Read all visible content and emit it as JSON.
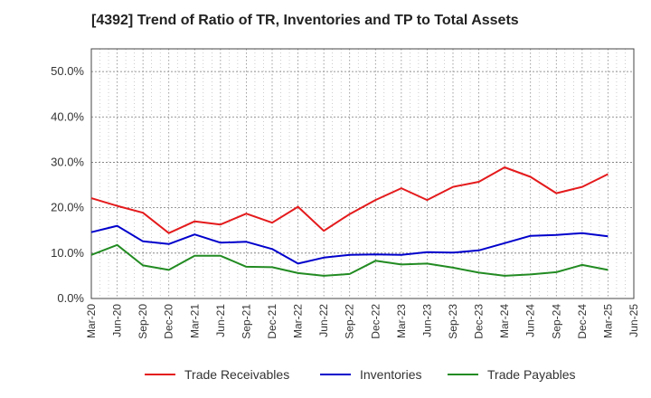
{
  "chart_data": {
    "type": "line",
    "title": "[4392]  Trend of Ratio of TR, Inventories and TP to Total Assets",
    "xlabel": "",
    "ylabel": "",
    "x": [
      "Mar-20",
      "Jun-20",
      "Sep-20",
      "Dec-20",
      "Mar-21",
      "Jun-21",
      "Sep-21",
      "Dec-21",
      "Mar-22",
      "Jun-22",
      "Sep-22",
      "Dec-22",
      "Mar-23",
      "Jun-23",
      "Sep-23",
      "Dec-23",
      "Mar-24",
      "Jun-24",
      "Sep-24",
      "Dec-24",
      "Mar-25",
      "Jun-25"
    ],
    "ylim": [
      0,
      55
    ],
    "yticks": [
      0,
      10,
      20,
      30,
      40,
      50
    ],
    "ytick_labels": [
      "0.0%",
      "10.0%",
      "20.0%",
      "30.0%",
      "40.0%",
      "50.0%"
    ],
    "grid": true,
    "legend_position": "bottom",
    "series": [
      {
        "name": "Trade Receivables",
        "color": "#e41a1c",
        "values": [
          22.1,
          20.4,
          18.9,
          14.4,
          17.0,
          16.3,
          18.7,
          16.7,
          20.2,
          14.9,
          18.6,
          21.7,
          24.3,
          21.7,
          24.6,
          25.7,
          28.9,
          26.8,
          23.2,
          24.6,
          27.4,
          null
        ]
      },
      {
        "name": "Inventories",
        "color": "#0000cc",
        "values": [
          14.6,
          16.0,
          12.6,
          12.0,
          14.1,
          12.3,
          12.5,
          10.9,
          7.7,
          9.0,
          9.6,
          9.7,
          9.6,
          10.2,
          10.1,
          10.6,
          12.2,
          13.8,
          14.0,
          14.4,
          13.7,
          null
        ]
      },
      {
        "name": "Trade Payables",
        "color": "#228b22",
        "values": [
          9.6,
          11.8,
          7.3,
          6.3,
          9.4,
          9.4,
          7.0,
          6.9,
          5.6,
          5.0,
          5.4,
          8.3,
          7.5,
          7.7,
          6.8,
          5.7,
          5.0,
          5.3,
          5.8,
          7.4,
          6.3,
          null
        ]
      }
    ]
  }
}
